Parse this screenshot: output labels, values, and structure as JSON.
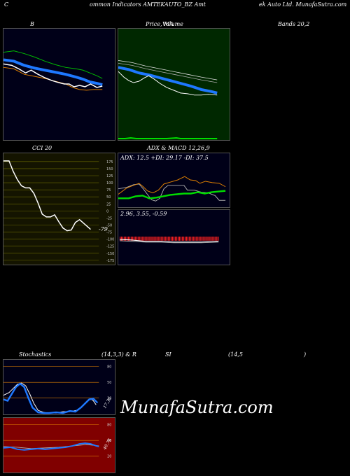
{
  "header": {
    "left": "C",
    "center": "ommon  Indicators AMTEKAUTO_BZ Amt",
    "right": "ek Auto  Ltd. MunafaSutra.com"
  },
  "panel_titles": {
    "bollinger": "B",
    "price_ma_a": "Price,  MA",
    "price_ma_b": "Volume",
    "bands": "Bands 20,2",
    "cci": "CCI 20",
    "adx_macd": "ADX  & MACD 12,26,9",
    "adx_values": "ADX: 12.5  +DI: 29.17 -DI: 37.5",
    "macd_values": "2.96,  3.55,  -0.59",
    "stoch": "Stochastics",
    "stoch_params": "(14,3,3) & R",
    "rsi": "SI",
    "rsi_params": "(14,5",
    "rsi_close": ")"
  },
  "cci": {
    "ticks": [
      "175",
      "150",
      "125",
      "100",
      "75",
      "50",
      "25",
      "0",
      "-25",
      "-50",
      "-75",
      "-100",
      "-125",
      "-150",
      "-175"
    ],
    "last_label": "-79"
  },
  "stoch": {
    "ticks": [
      "80",
      "50",
      "20"
    ],
    "last_label": "17.36"
  },
  "rsi": {
    "ticks": [
      "80",
      "50",
      "20"
    ],
    "last_label": "40.76"
  },
  "watermark": "MunafaSutra.com",
  "colors": {
    "panel_bg_dark": "#000018",
    "panel_bg_green": "#002800",
    "panel_bg_olive": "#141400",
    "panel_bg_red": "#800000",
    "blue": "#1e78ff",
    "green": "#00dd00",
    "orange": "#e08000"
  }
}
